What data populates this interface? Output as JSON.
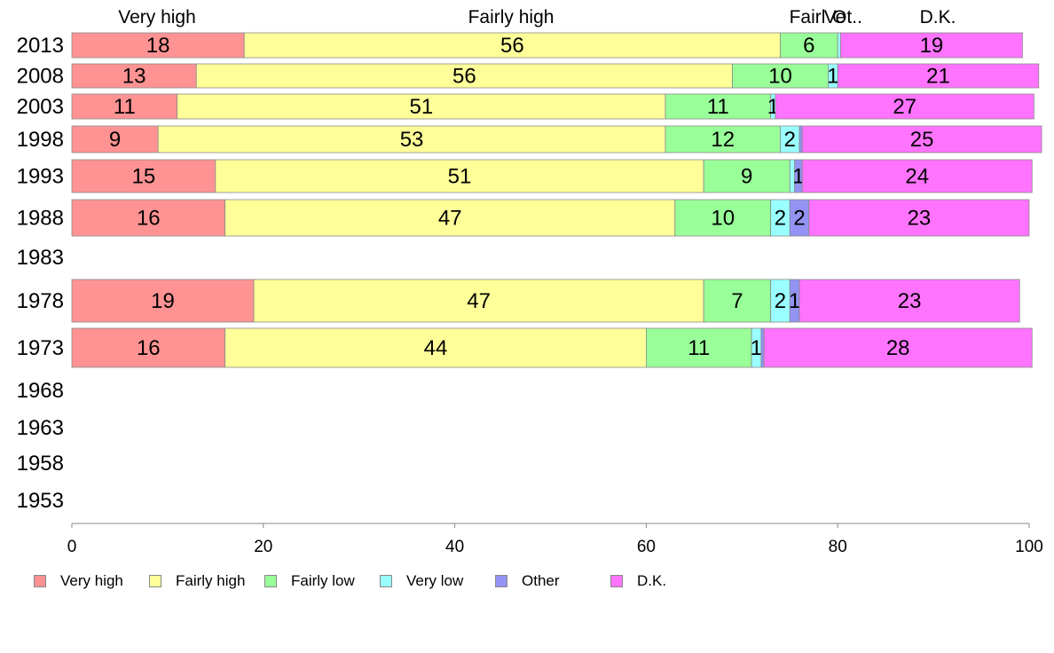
{
  "chart_data": {
    "type": "bar",
    "orientation": "horizontal",
    "stacked": true,
    "categories": [
      "2013",
      "2008",
      "2003",
      "1998",
      "1993",
      "1988",
      "1983",
      "1978",
      "1973",
      "1968",
      "1963",
      "1958",
      "1953"
    ],
    "series": [
      {
        "name": "Very high",
        "color": "#FF9393",
        "values": [
          18,
          13,
          11,
          9,
          15,
          16,
          null,
          19,
          16,
          null,
          null,
          null,
          null
        ]
      },
      {
        "name": "Fairly high",
        "color": "#FFFF99",
        "values": [
          56,
          56,
          51,
          53,
          51,
          47,
          null,
          47,
          44,
          null,
          null,
          null,
          null
        ]
      },
      {
        "name": "Fairly low",
        "color": "#99FF99",
        "values": [
          6,
          10,
          11,
          12,
          9,
          10,
          null,
          7,
          11,
          null,
          null,
          null,
          null
        ]
      },
      {
        "name": "Very low",
        "color": "#99FFFF",
        "values": [
          0.3,
          1,
          0.5,
          2,
          0.5,
          2,
          null,
          2,
          1,
          null,
          null,
          null,
          null
        ]
      },
      {
        "name": "Other",
        "color": "#9393F3",
        "values": [
          0,
          0,
          0,
          0.3,
          0.8,
          2,
          null,
          1,
          0.3,
          null,
          null,
          null,
          null
        ]
      },
      {
        "name": "D.K.",
        "color": "#FF73FF",
        "values": [
          19,
          21,
          27,
          25,
          24,
          23,
          null,
          23,
          28,
          null,
          null,
          null,
          null
        ]
      }
    ],
    "data_labels": [
      [
        "18",
        "56",
        "6",
        "",
        "",
        "19"
      ],
      [
        "13",
        "56",
        "10",
        "1",
        "",
        "21"
      ],
      [
        "11",
        "51",
        "11",
        "1",
        "",
        "27"
      ],
      [
        "9",
        "53",
        "12",
        "2",
        "",
        "25"
      ],
      [
        "15",
        "51",
        "9",
        "",
        "1",
        "24"
      ],
      [
        "16",
        "47",
        "10",
        "2",
        "2",
        "23"
      ],
      [],
      [
        "19",
        "47",
        "7",
        "2",
        "1",
        "23"
      ],
      [
        "16",
        "44",
        "11",
        "1",
        "",
        "28"
      ],
      [],
      [],
      [],
      []
    ],
    "top_labels": [
      "Very high",
      "Fairly high",
      "Fairly low",
      "Very low",
      "Other",
      "D.K."
    ],
    "top_labels_shown": [
      "Very high",
      "Fairly high",
      "Fairl",
      "Ve",
      "Ot..",
      "D.K."
    ],
    "xlim": [
      0,
      100
    ],
    "xticks": [
      0,
      20,
      40,
      60,
      80,
      100
    ],
    "xlabel": "",
    "ylabel": "",
    "title": "",
    "grid": false,
    "legend_position": "bottom"
  }
}
